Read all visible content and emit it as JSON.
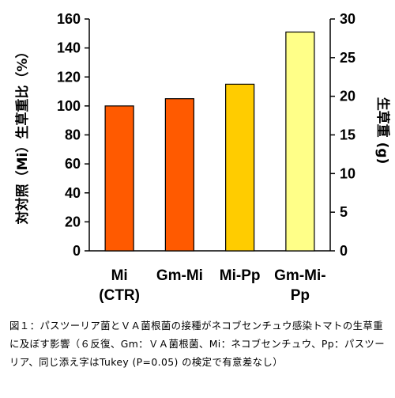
{
  "chart_data": {
    "type": "bar",
    "categories": [
      "Mi\n(CTR)",
      "Gm-Mi",
      "Mi-Pp",
      "Gm-Mi-\nPp"
    ],
    "values": [
      100,
      105,
      115,
      151
    ],
    "bar_colors": [
      "#ff5a00",
      "#ff5a00",
      "#ffcc00",
      "#ffff88"
    ],
    "ylim": [
      0,
      160
    ],
    "y_ticks": [
      0,
      20,
      40,
      60,
      80,
      100,
      120,
      140,
      160
    ],
    "y2lim": [
      0,
      30
    ],
    "y2_ticks": [
      0,
      5,
      10,
      15,
      20,
      25,
      30
    ],
    "ylabel": "対対照（Mi）生草重比（%）",
    "y2label": "生草重 (g)",
    "grid": false
  },
  "caption": "図１：パスツーリア菌とＶＡ菌根菌の接種がネコブセンチュウ感染トマトの生草重に及ぼす影響（６反復、Gm：ＶＡ菌根菌、Mi：ネコブセンチュウ、Pp：パスツーリア、同じ添え字はTukey (P=0.05) の検定で有意差なし）"
}
